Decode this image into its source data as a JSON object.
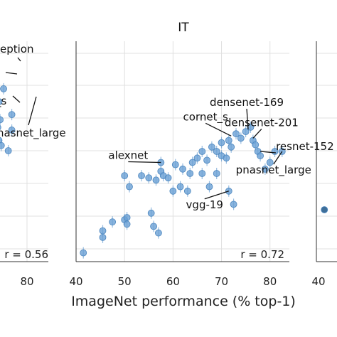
{
  "chart_data": [
    {
      "type": "scatter",
      "title": "",
      "partial": "left panel (clipped)",
      "xlim": [
        40,
        85
      ],
      "r_label": "r = 0.56",
      "x_ticks": [
        "80"
      ],
      "points": [
        {
          "x": 78.5,
          "y": 0.78
        },
        {
          "x": 82.0,
          "y": 0.62
        },
        {
          "x": 82.0,
          "y": 0.68
        },
        {
          "x": 80.5,
          "y": 0.54
        },
        {
          "x": 76.5,
          "y": 0.73
        },
        {
          "x": 77.0,
          "y": 0.66
        },
        {
          "x": 75.5,
          "y": 0.7
        },
        {
          "x": 76.0,
          "y": 0.63
        },
        {
          "x": 75.5,
          "y": 0.6
        },
        {
          "x": 75.5,
          "y": 0.55
        },
        {
          "x": 76.5,
          "y": 0.58
        },
        {
          "x": 77.5,
          "y": 0.56
        },
        {
          "x": 75.0,
          "y": 0.5
        }
      ],
      "annotations": [
        {
          "text": "eption",
          "x": 78.5,
          "y": 0.78
        },
        {
          "text": "_s",
          "x": 76.5,
          "y": 0.6
        },
        {
          "text": "nasnet_large",
          "x": 82.0,
          "y": 0.62
        }
      ]
    },
    {
      "type": "scatter",
      "title": "IT",
      "xlabel": "ImageNet performance (% top-1)",
      "xlim": [
        40,
        84
      ],
      "ylim": [
        0.0,
        1.0
      ],
      "x_ticks": [
        40,
        50,
        60,
        70,
        80
      ],
      "grid": true,
      "r_label": "r = 0.72",
      "points": [
        {
          "x": 41.5,
          "y": 0.04
        },
        {
          "x": 45.5,
          "y": 0.11
        },
        {
          "x": 45.5,
          "y": 0.14
        },
        {
          "x": 47.5,
          "y": 0.18
        },
        {
          "x": 50.0,
          "y": 0.19
        },
        {
          "x": 50.5,
          "y": 0.17
        },
        {
          "x": 50.5,
          "y": 0.2
        },
        {
          "x": 51.0,
          "y": 0.34
        },
        {
          "x": 55.5,
          "y": 0.22
        },
        {
          "x": 56.0,
          "y": 0.16
        },
        {
          "x": 57.0,
          "y": 0.13
        },
        {
          "x": 50.0,
          "y": 0.39
        },
        {
          "x": 53.5,
          "y": 0.39
        },
        {
          "x": 55.0,
          "y": 0.38
        },
        {
          "x": 56.5,
          "y": 0.37
        },
        {
          "x": 57.5,
          "y": 0.41
        },
        {
          "x": 58.0,
          "y": 0.39
        },
        {
          "x": 59.0,
          "y": 0.38
        },
        {
          "x": 60.5,
          "y": 0.44
        },
        {
          "x": 62.0,
          "y": 0.42
        },
        {
          "x": 63.5,
          "y": 0.4
        },
        {
          "x": 64.0,
          "y": 0.45
        },
        {
          "x": 65.0,
          "y": 0.47
        },
        {
          "x": 66.0,
          "y": 0.5
        },
        {
          "x": 67.0,
          "y": 0.46
        },
        {
          "x": 68.0,
          "y": 0.52
        },
        {
          "x": 69.0,
          "y": 0.5
        },
        {
          "x": 70.0,
          "y": 0.48
        },
        {
          "x": 70.0,
          "y": 0.54
        },
        {
          "x": 71.5,
          "y": 0.55
        },
        {
          "x": 72.0,
          "y": 0.52
        },
        {
          "x": 73.0,
          "y": 0.58
        },
        {
          "x": 74.0,
          "y": 0.56
        },
        {
          "x": 75.0,
          "y": 0.59
        },
        {
          "x": 76.0,
          "y": 0.61
        },
        {
          "x": 76.5,
          "y": 0.55
        },
        {
          "x": 77.0,
          "y": 0.53
        },
        {
          "x": 77.5,
          "y": 0.5
        },
        {
          "x": 78.0,
          "y": 0.48
        },
        {
          "x": 79.0,
          "y": 0.42
        },
        {
          "x": 80.0,
          "y": 0.45
        },
        {
          "x": 81.0,
          "y": 0.5
        },
        {
          "x": 82.5,
          "y": 0.5
        },
        {
          "x": 66.0,
          "y": 0.4
        },
        {
          "x": 61.5,
          "y": 0.34
        },
        {
          "x": 67.5,
          "y": 0.34
        },
        {
          "x": 63.0,
          "y": 0.32
        },
        {
          "x": 71.5,
          "y": 0.32
        },
        {
          "x": 72.5,
          "y": 0.26
        },
        {
          "x": 71.0,
          "y": 0.47
        },
        {
          "x": 69.0,
          "y": 0.4
        },
        {
          "x": 60.0,
          "y": 0.32
        },
        {
          "x": 57.5,
          "y": 0.45
        }
      ],
      "annotations": [
        {
          "text": "densenet-169",
          "x": 75.5,
          "y": 0.6
        },
        {
          "text": "cornet_s",
          "x": 72.0,
          "y": 0.57
        },
        {
          "text": "densenet-201",
          "x": 76.5,
          "y": 0.56
        },
        {
          "text": "resnet-152",
          "x": 78.0,
          "y": 0.5
        },
        {
          "text": "alexnet",
          "x": 57.5,
          "y": 0.45
        },
        {
          "text": "pnasnet_large",
          "x": 82.5,
          "y": 0.5
        },
        {
          "text": "vgg-19",
          "x": 71.5,
          "y": 0.32
        }
      ]
    },
    {
      "type": "scatter",
      "title": "",
      "partial": "right panel (clipped)",
      "xlim": [
        40,
        85
      ],
      "x_ticks": [
        "40"
      ],
      "points": [
        {
          "x": 41.5,
          "y": 0.19
        }
      ]
    }
  ],
  "colors": {
    "point_fill": "#6aa0d4",
    "point_edge": "#4c86be",
    "point_dark": "#3f6f9a",
    "grid": "#e0e0e0",
    "axis": "#333333"
  }
}
